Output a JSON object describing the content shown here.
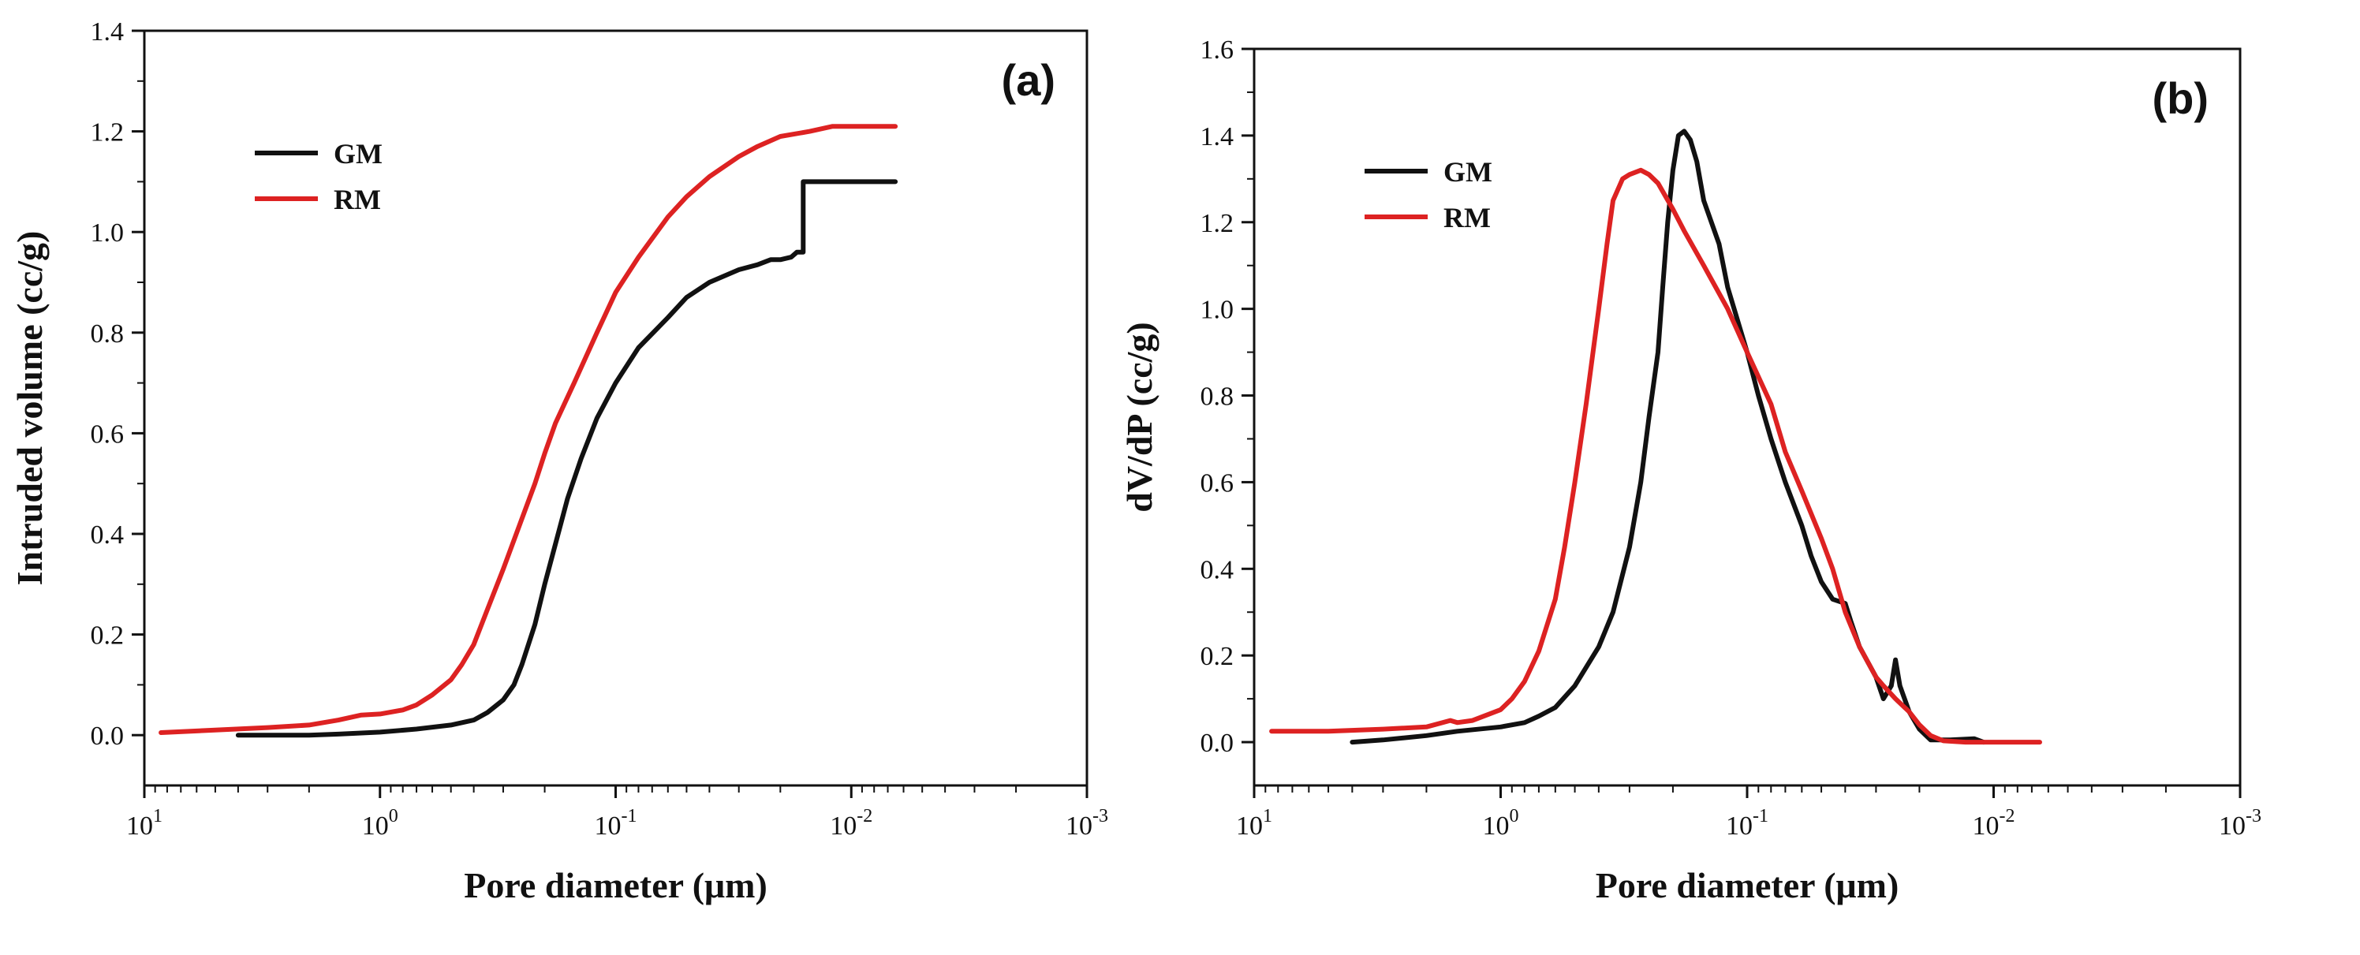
{
  "chart_data": [
    {
      "type": "line",
      "panel_label": "(a)",
      "xlabel": "Pore diameter (μm)",
      "ylabel": "Intruded volume (cc/g)",
      "x_scale": "log",
      "x_direction": "decreasing",
      "xlim": [
        10,
        0.001
      ],
      "ylim": [
        -0.1,
        1.4
      ],
      "xtick_labels": [
        {
          "base": "10",
          "exp": "1"
        },
        {
          "base": "10",
          "exp": "0"
        },
        {
          "base": "10",
          "exp": "-1"
        },
        {
          "base": "10",
          "exp": "-2"
        },
        {
          "base": "10",
          "exp": "-3"
        }
      ],
      "ytick_labels": [
        "0.0",
        "0.2",
        "0.4",
        "0.6",
        "0.8",
        "1.0",
        "1.2",
        "1.4"
      ],
      "legend_position": "top-left",
      "colors": {
        "GM": "#111111",
        "RM": "#dd2222"
      },
      "series": [
        {
          "name": "GM",
          "color": "#111111",
          "points": [
            [
              4.0,
              0.0
            ],
            [
              3.0,
              0.0
            ],
            [
              2.0,
              0.0
            ],
            [
              1.5,
              0.002
            ],
            [
              1.0,
              0.006
            ],
            [
              0.7,
              0.012
            ],
            [
              0.5,
              0.02
            ],
            [
              0.4,
              0.03
            ],
            [
              0.35,
              0.045
            ],
            [
              0.3,
              0.07
            ],
            [
              0.27,
              0.1
            ],
            [
              0.25,
              0.14
            ],
            [
              0.22,
              0.22
            ],
            [
              0.2,
              0.3
            ],
            [
              0.18,
              0.38
            ],
            [
              0.16,
              0.47
            ],
            [
              0.14,
              0.55
            ],
            [
              0.12,
              0.63
            ],
            [
              0.1,
              0.7
            ],
            [
              0.08,
              0.77
            ],
            [
              0.06,
              0.83
            ],
            [
              0.05,
              0.87
            ],
            [
              0.04,
              0.9
            ],
            [
              0.03,
              0.925
            ],
            [
              0.025,
              0.935
            ],
            [
              0.022,
              0.945
            ],
            [
              0.02,
              0.945
            ],
            [
              0.018,
              0.95
            ],
            [
              0.017,
              0.96
            ],
            [
              0.016,
              0.96
            ],
            [
              0.016,
              1.1
            ],
            [
              0.015,
              1.1
            ],
            [
              0.0065,
              1.1
            ]
          ]
        },
        {
          "name": "RM",
          "color": "#dd2222",
          "points": [
            [
              8.5,
              0.005
            ],
            [
              5.0,
              0.01
            ],
            [
              3.0,
              0.015
            ],
            [
              2.0,
              0.02
            ],
            [
              1.5,
              0.03
            ],
            [
              1.2,
              0.04
            ],
            [
              1.0,
              0.042
            ],
            [
              0.8,
              0.05
            ],
            [
              0.7,
              0.06
            ],
            [
              0.6,
              0.08
            ],
            [
              0.5,
              0.11
            ],
            [
              0.45,
              0.14
            ],
            [
              0.4,
              0.18
            ],
            [
              0.35,
              0.25
            ],
            [
              0.3,
              0.33
            ],
            [
              0.25,
              0.43
            ],
            [
              0.22,
              0.5
            ],
            [
              0.2,
              0.56
            ],
            [
              0.18,
              0.62
            ],
            [
              0.15,
              0.7
            ],
            [
              0.12,
              0.8
            ],
            [
              0.1,
              0.88
            ],
            [
              0.08,
              0.95
            ],
            [
              0.06,
              1.03
            ],
            [
              0.05,
              1.07
            ],
            [
              0.04,
              1.11
            ],
            [
              0.03,
              1.15
            ],
            [
              0.025,
              1.17
            ],
            [
              0.02,
              1.19
            ],
            [
              0.015,
              1.2
            ],
            [
              0.012,
              1.21
            ],
            [
              0.01,
              1.21
            ],
            [
              0.0065,
              1.21
            ]
          ]
        }
      ]
    },
    {
      "type": "line",
      "panel_label": "(b)",
      "xlabel": "Pore diameter (μm)",
      "ylabel": "dV/dP (cc/g)",
      "x_scale": "log",
      "x_direction": "decreasing",
      "xlim": [
        10,
        0.001
      ],
      "ylim": [
        -0.1,
        1.6
      ],
      "xtick_labels": [
        {
          "base": "10",
          "exp": "1"
        },
        {
          "base": "10",
          "exp": "0"
        },
        {
          "base": "10",
          "exp": "-1"
        },
        {
          "base": "10",
          "exp": "-2"
        },
        {
          "base": "10",
          "exp": "-3"
        }
      ],
      "ytick_labels": [
        "0.0",
        "0.2",
        "0.4",
        "0.6",
        "0.8",
        "1.0",
        "1.2",
        "1.4",
        "1.6"
      ],
      "legend_position": "top-left",
      "colors": {
        "GM": "#111111",
        "RM": "#dd2222"
      },
      "series": [
        {
          "name": "GM",
          "color": "#111111",
          "points": [
            [
              4.0,
              0.0
            ],
            [
              3.0,
              0.005
            ],
            [
              2.0,
              0.015
            ],
            [
              1.5,
              0.025
            ],
            [
              1.0,
              0.035
            ],
            [
              0.8,
              0.045
            ],
            [
              0.7,
              0.06
            ],
            [
              0.6,
              0.08
            ],
            [
              0.5,
              0.13
            ],
            [
              0.4,
              0.22
            ],
            [
              0.35,
              0.3
            ],
            [
              0.3,
              0.45
            ],
            [
              0.27,
              0.6
            ],
            [
              0.25,
              0.75
            ],
            [
              0.23,
              0.9
            ],
            [
              0.22,
              1.05
            ],
            [
              0.21,
              1.2
            ],
            [
              0.2,
              1.32
            ],
            [
              0.19,
              1.4
            ],
            [
              0.18,
              1.41
            ],
            [
              0.17,
              1.39
            ],
            [
              0.16,
              1.34
            ],
            [
              0.15,
              1.25
            ],
            [
              0.13,
              1.15
            ],
            [
              0.12,
              1.05
            ],
            [
              0.1,
              0.9
            ],
            [
              0.09,
              0.8
            ],
            [
              0.08,
              0.7
            ],
            [
              0.07,
              0.6
            ],
            [
              0.06,
              0.5
            ],
            [
              0.055,
              0.43
            ],
            [
              0.05,
              0.37
            ],
            [
              0.045,
              0.33
            ],
            [
              0.04,
              0.32
            ],
            [
              0.038,
              0.28
            ],
            [
              0.035,
              0.22
            ],
            [
              0.03,
              0.15
            ],
            [
              0.028,
              0.1
            ],
            [
              0.026,
              0.13
            ],
            [
              0.025,
              0.19
            ],
            [
              0.024,
              0.13
            ],
            [
              0.022,
              0.07
            ],
            [
              0.02,
              0.03
            ],
            [
              0.018,
              0.005
            ],
            [
              0.015,
              0.005
            ],
            [
              0.012,
              0.008
            ],
            [
              0.011,
              0.0
            ]
          ]
        },
        {
          "name": "RM",
          "color": "#dd2222",
          "points": [
            [
              8.5,
              0.025
            ],
            [
              5.0,
              0.025
            ],
            [
              3.0,
              0.03
            ],
            [
              2.0,
              0.035
            ],
            [
              1.6,
              0.05
            ],
            [
              1.5,
              0.045
            ],
            [
              1.3,
              0.05
            ],
            [
              1.0,
              0.075
            ],
            [
              0.9,
              0.1
            ],
            [
              0.8,
              0.14
            ],
            [
              0.7,
              0.21
            ],
            [
              0.6,
              0.33
            ],
            [
              0.55,
              0.45
            ],
            [
              0.5,
              0.6
            ],
            [
              0.45,
              0.78
            ],
            [
              0.4,
              1.0
            ],
            [
              0.37,
              1.15
            ],
            [
              0.35,
              1.25
            ],
            [
              0.32,
              1.3
            ],
            [
              0.3,
              1.31
            ],
            [
              0.27,
              1.32
            ],
            [
              0.25,
              1.31
            ],
            [
              0.23,
              1.29
            ],
            [
              0.2,
              1.23
            ],
            [
              0.18,
              1.18
            ],
            [
              0.15,
              1.1
            ],
            [
              0.12,
              1.0
            ],
            [
              0.1,
              0.9
            ],
            [
              0.08,
              0.78
            ],
            [
              0.07,
              0.67
            ],
            [
              0.06,
              0.58
            ],
            [
              0.05,
              0.47
            ],
            [
              0.045,
              0.4
            ],
            [
              0.04,
              0.3
            ],
            [
              0.035,
              0.22
            ],
            [
              0.03,
              0.15
            ],
            [
              0.028,
              0.13
            ],
            [
              0.025,
              0.1
            ],
            [
              0.022,
              0.07
            ],
            [
              0.02,
              0.04
            ],
            [
              0.018,
              0.015
            ],
            [
              0.016,
              0.003
            ],
            [
              0.013,
              0.0
            ],
            [
              0.01,
              0.0
            ],
            [
              0.0065,
              0.0
            ]
          ]
        }
      ]
    }
  ]
}
